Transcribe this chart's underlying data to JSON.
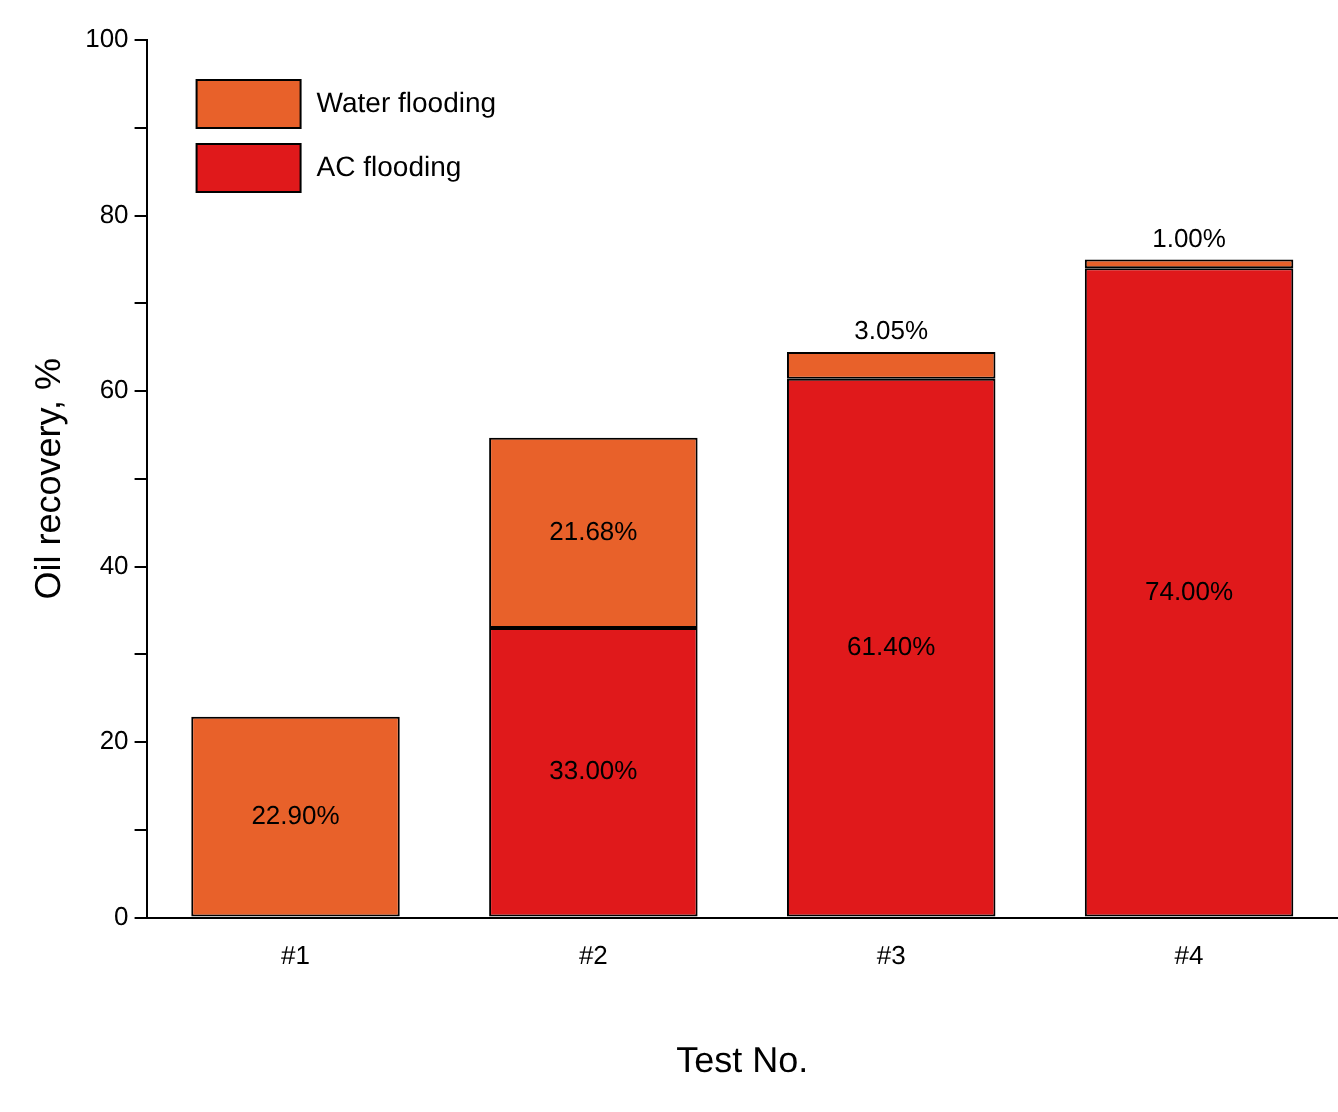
{
  "chart_data": {
    "type": "bar",
    "stacked": true,
    "xlabel": "Test No.",
    "ylabel": "Oil recovery, %",
    "categories": [
      "#1",
      "#2",
      "#3",
      "#4"
    ],
    "series": [
      {
        "name": "AC flooding",
        "color": "#e0191b",
        "values": [
          null,
          33.0,
          61.4,
          74.0
        ],
        "value_labels": [
          null,
          "33.00%",
          "61.40%",
          "74.00%"
        ]
      },
      {
        "name": "Water flooding",
        "color": "#e8612a",
        "values": [
          22.9,
          21.68,
          3.05,
          1.0
        ],
        "value_labels": [
          "22.90%",
          "21.68%",
          "3.05%",
          "1.00%"
        ]
      }
    ],
    "ylim": [
      0,
      100
    ],
    "yticks": [
      0,
      {
        "value": 10,
        "label": null
      },
      20,
      {
        "value": 30,
        "label": null
      },
      40,
      {
        "value": 50,
        "label": null
      },
      60,
      {
        "value": 70,
        "label": null
      },
      80,
      {
        "value": 90,
        "label": null
      },
      100
    ],
    "grid": false,
    "legend": "top left"
  }
}
